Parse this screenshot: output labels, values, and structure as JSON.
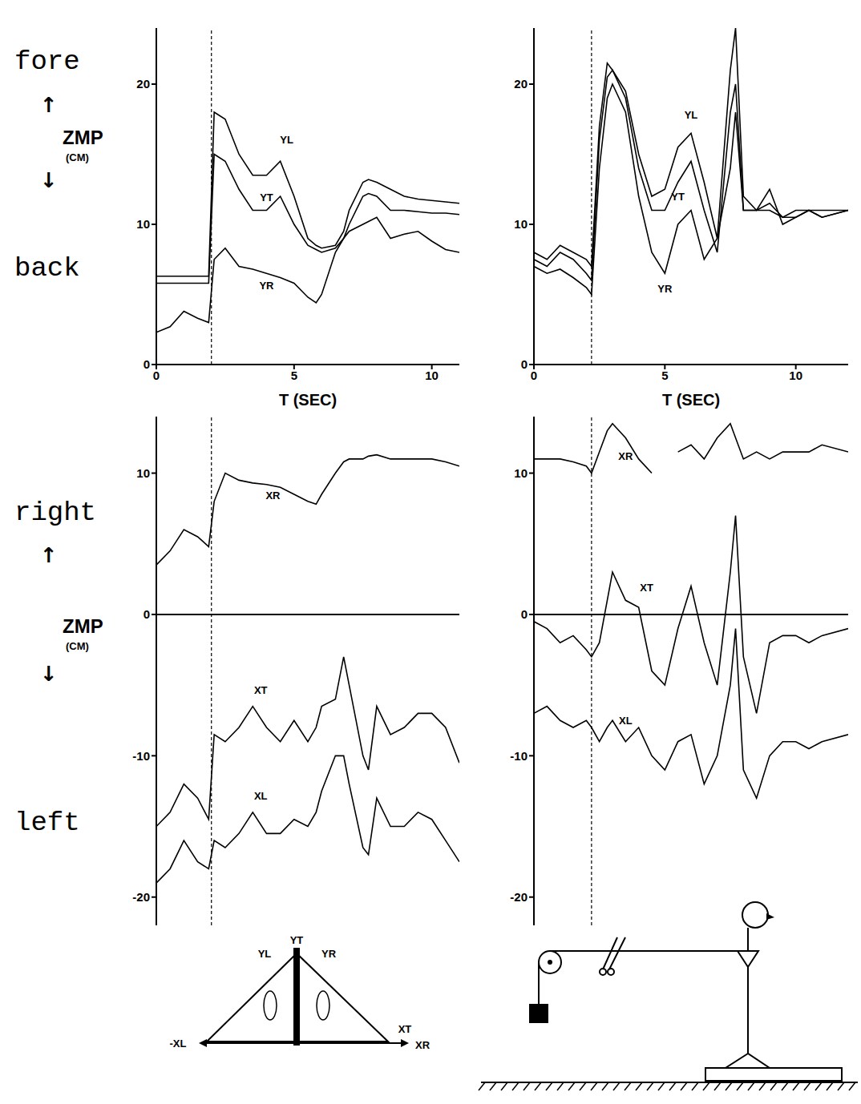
{
  "chart_data": [
    {
      "type": "line",
      "xlabel": "T (SEC)",
      "ylabel": [
        "fore",
        "↑",
        "ZMP",
        "(CM)",
        "↓",
        "back"
      ],
      "x": [
        0,
        0.5,
        1,
        1.5,
        1.9,
        2.1,
        2.5,
        3,
        3.5,
        4,
        4.5,
        5,
        5.5,
        5.8,
        6,
        6.5,
        6.8,
        7,
        7.5,
        7.7,
        8,
        8.5,
        9,
        9.5,
        10,
        10.5,
        11
      ],
      "xlim": [
        0,
        11
      ],
      "xticks": [
        0,
        5,
        10
      ],
      "ylim": [
        0,
        24
      ],
      "yticks": [
        0,
        10,
        20
      ],
      "event_time": 2.0,
      "series": [
        {
          "name": "YL",
          "color": "#000000",
          "values": [
            6.3,
            6.3,
            6.3,
            6.3,
            6.3,
            18,
            17.5,
            15,
            13.5,
            13.5,
            14.5,
            12,
            9,
            8.5,
            8.3,
            8.5,
            9.5,
            11,
            13,
            13.2,
            13,
            12.5,
            12,
            11.8,
            11.7,
            11.6,
            11.5
          ]
        },
        {
          "name": "YT",
          "color": "#000000",
          "values": [
            5.8,
            5.8,
            5.8,
            5.8,
            5.8,
            15,
            14.5,
            12.5,
            11,
            11,
            12,
            10,
            8.5,
            8.2,
            8,
            8.3,
            9,
            10,
            12,
            12.2,
            12,
            11,
            11,
            10.9,
            10.8,
            10.8,
            10.7
          ]
        },
        {
          "name": "YR",
          "color": "#000000",
          "values": [
            2.3,
            2.7,
            3.8,
            3.3,
            3,
            7.5,
            8.3,
            7,
            6.8,
            6.5,
            6.2,
            5.8,
            4.8,
            4.4,
            5,
            8,
            9,
            9.5,
            10,
            10.2,
            10.5,
            9,
            9.3,
            9.5,
            8.8,
            8.2,
            8
          ]
        }
      ]
    },
    {
      "type": "line",
      "xlabel": "T (SEC)",
      "x": [
        0,
        0.5,
        1,
        1.5,
        2,
        2.2,
        2.5,
        2.8,
        3,
        3.5,
        4,
        4.5,
        5,
        5.5,
        6,
        6.5,
        7,
        7.5,
        7.7,
        8,
        8.5,
        9,
        9.5,
        10,
        10.5,
        11,
        12
      ],
      "xlim": [
        0,
        12
      ],
      "xticks": [
        0,
        5,
        10
      ],
      "ylim": [
        0,
        24
      ],
      "yticks": [
        0,
        10,
        20
      ],
      "event_time": 2.2,
      "series": [
        {
          "name": "YL",
          "color": "#000000",
          "values": [
            8,
            7.5,
            8.5,
            8,
            7.5,
            7,
            17,
            21.5,
            21,
            19.5,
            15,
            12,
            12.5,
            15.5,
            16.5,
            13,
            9,
            21,
            24,
            12,
            11,
            12.5,
            10,
            10.5,
            11,
            10.5,
            11
          ]
        },
        {
          "name": "YT",
          "color": "#000000",
          "values": [
            7.5,
            7,
            8,
            7.5,
            6.5,
            6,
            16,
            20.5,
            21,
            19,
            14,
            11,
            11,
            13,
            14.5,
            11,
            8,
            18,
            20,
            11,
            11,
            11.5,
            10.5,
            10.5,
            11,
            10.5,
            11
          ]
        },
        {
          "name": "YR",
          "color": "#000000",
          "values": [
            7,
            6.5,
            6.8,
            6.2,
            5.5,
            5,
            14,
            19,
            20,
            18,
            12,
            8,
            6.5,
            10,
            11,
            7.5,
            9,
            14,
            18,
            11,
            11,
            11,
            10.5,
            11,
            11,
            11,
            11
          ]
        }
      ]
    },
    {
      "type": "line",
      "ylabel": [
        "right",
        "↑",
        "ZMP",
        "(CM)",
        "↓",
        "left"
      ],
      "tick_labels": "y",
      "x": [
        0,
        0.5,
        1,
        1.5,
        1.9,
        2.1,
        2.5,
        3,
        3.5,
        4,
        4.5,
        5,
        5.5,
        5.8,
        6,
        6.5,
        6.8,
        7,
        7.5,
        7.7,
        8,
        8.5,
        9,
        9.5,
        10,
        10.5,
        11
      ],
      "xlim": [
        0,
        11
      ],
      "ylim": [
        -22,
        14
      ],
      "yticks": [
        -20,
        -10,
        0,
        10
      ],
      "event_time": 2.0,
      "x_axis_at": 0,
      "series": [
        {
          "name": "XR",
          "color": "#000000",
          "values": [
            3.5,
            4.5,
            6,
            5.5,
            4.8,
            8,
            10,
            9.5,
            9.3,
            9.2,
            9,
            8.5,
            8,
            7.8,
            8.5,
            10,
            10.8,
            11,
            11,
            11.2,
            11.3,
            11,
            11,
            11,
            11,
            10.8,
            10.5
          ]
        },
        {
          "name": "XT",
          "color": "#000000",
          "values": [
            -15,
            -14,
            -12,
            -13,
            -14.5,
            -8.5,
            -9,
            -8,
            -6.5,
            -8,
            -9,
            -7.5,
            -9,
            -8,
            -6.5,
            -6,
            -3,
            -5,
            -10,
            -11,
            -6.5,
            -8.5,
            -8,
            -7,
            -7,
            -8,
            -10.5
          ]
        },
        {
          "name": "XL",
          "color": "#000000",
          "values": [
            -19,
            -18,
            -16,
            -17.5,
            -18,
            -16,
            -16.5,
            -15.5,
            -14,
            -15.5,
            -15.5,
            -14.5,
            -15,
            -14,
            -12.5,
            -10,
            -10,
            -12,
            -16.5,
            -17,
            -13,
            -15,
            -15,
            -14,
            -14.5,
            -16,
            -17.5
          ]
        }
      ]
    },
    {
      "type": "line",
      "tick_labels": "y",
      "x": [
        0,
        0.5,
        1,
        1.5,
        2,
        2.2,
        2.5,
        2.8,
        3,
        3.5,
        4,
        4.5,
        5,
        5.5,
        6,
        6.5,
        7,
        7.5,
        7.7,
        8,
        8.5,
        9,
        9.5,
        10,
        10.5,
        11,
        12
      ],
      "xlim": [
        0,
        12
      ],
      "ylim": [
        -22,
        14
      ],
      "yticks": [
        -20,
        -10,
        0,
        10
      ],
      "event_time": 2.2,
      "x_axis_at": 0,
      "series": [
        {
          "name": "XR",
          "color": "#000000",
          "values": [
            11,
            11,
            11,
            10.8,
            10.5,
            10,
            11.5,
            13,
            13.5,
            12.5,
            11,
            10,
            null,
            11.5,
            12,
            11,
            12.5,
            13.5,
            12.5,
            11,
            11.5,
            11,
            11.5,
            11.5,
            11.5,
            12,
            11.5
          ]
        },
        {
          "name": "XT",
          "color": "#000000",
          "values": [
            -0.5,
            -1,
            -2,
            -1.5,
            -2.5,
            -3,
            -2,
            1,
            3,
            1,
            0.5,
            -4,
            -5,
            -1,
            2,
            -2,
            -5,
            3,
            7,
            -3,
            -7,
            -2,
            -1.5,
            -1.5,
            -2,
            -1.5,
            -1
          ]
        },
        {
          "name": "XL",
          "color": "#000000",
          "values": [
            -7,
            -6.5,
            -7.5,
            -8,
            -7.5,
            -8,
            -9,
            -8,
            -7.5,
            -9,
            -8,
            -10,
            -11,
            -9,
            -8.5,
            -12,
            -10,
            -5,
            -1,
            -11,
            -13,
            -10,
            -9,
            -9,
            -9.5,
            -9,
            -8.5
          ]
        }
      ]
    }
  ],
  "diagram": {
    "labels": [
      "YT",
      "YL",
      "YR",
      "-XL",
      "XT",
      "XR"
    ]
  }
}
